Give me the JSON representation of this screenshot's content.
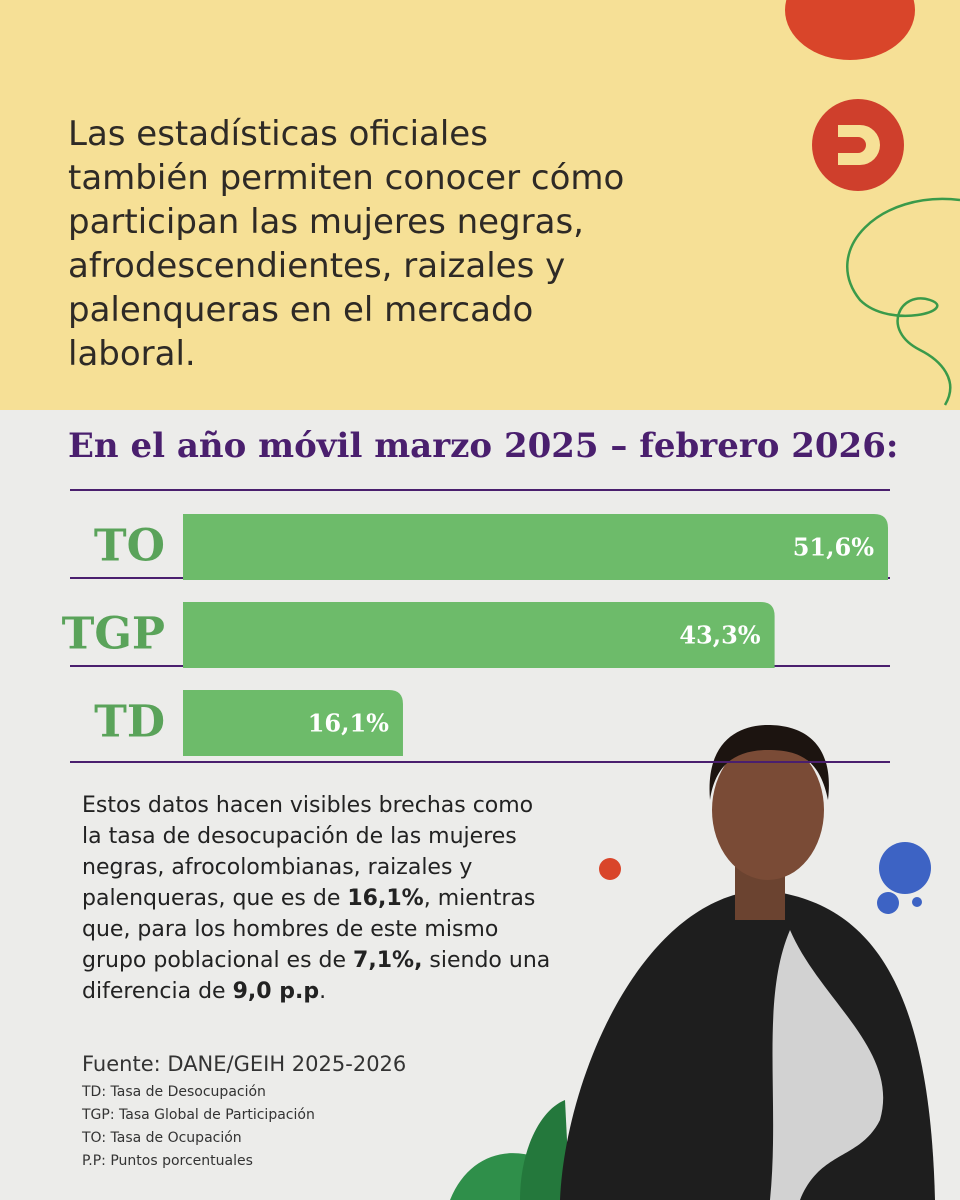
{
  "intro": "Las estadísticas oficiales también permiten conocer cómo participan las mujeres negras, afrodescendientes, raizales y palenqueras en el mercado laboral.",
  "chart_data": {
    "type": "bar",
    "orientation": "horizontal",
    "title": "En el año móvil marzo 2025 – febrero 2026:",
    "categories": [
      "TO",
      "TGP",
      "TD"
    ],
    "values": [
      51.6,
      43.3,
      16.1
    ],
    "value_labels": [
      "51,6%",
      "43,3%",
      "16,1%"
    ],
    "color": "#6dbb6a"
  },
  "body": [
    "Estos datos hacen visibles brechas como la tasa de desocupación de las mujeres negras, afrocolombianas, raizales y palenqueras, que es de ",
    "16,1%",
    ", mientras que, para los hombres de este mismo grupo poblacional es de ",
    "7,1%,",
    " siendo una diferencia de ",
    "9,0 p.p",
    "."
  ],
  "source": {
    "label": "Fuente:",
    "text": "DANE/GEIH 2025-2026"
  },
  "glossary": [
    {
      "abbr": "TD:",
      "text": "Tasa de Desocupación"
    },
    {
      "abbr": "TGP:",
      "text": "Tasa Global de Participación"
    },
    {
      "abbr": "TO:",
      "text": "Tasa de Ocupación"
    },
    {
      "abbr": "P.P:",
      "text": "Puntos porcentuales"
    }
  ]
}
